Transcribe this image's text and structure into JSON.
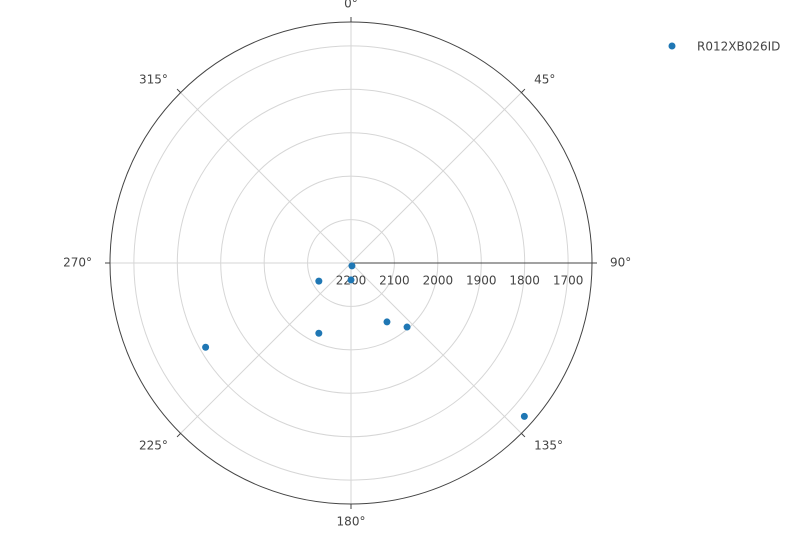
{
  "chart_data": {
    "type": "polar_scatter",
    "series": [
      {
        "name": "R012XB026ID",
        "color": "#1f77b4",
        "r": [
          2193,
          2161,
          2115,
          2022,
          2041,
          2004,
          1813,
          1667
        ],
        "theta": [
          162,
          180,
          240.6,
          204.6,
          148.6,
          138.8,
          239.9,
          131.5
        ]
      }
    ],
    "rlim": [
      2200,
      1645
    ],
    "rticks": [
      2200,
      2100,
      2000,
      1900,
      1800,
      1700
    ],
    "thetaticks": [
      {
        "value": 0,
        "label": "0°"
      },
      {
        "value": 45,
        "label": "45°"
      },
      {
        "value": 90,
        "label": "90°"
      },
      {
        "value": 135,
        "label": "135°"
      },
      {
        "value": 180,
        "label": "180°"
      },
      {
        "value": 225,
        "label": "225°"
      },
      {
        "value": 270,
        "label": "270°"
      },
      {
        "value": 315,
        "label": "315°"
      }
    ],
    "grid": true
  }
}
